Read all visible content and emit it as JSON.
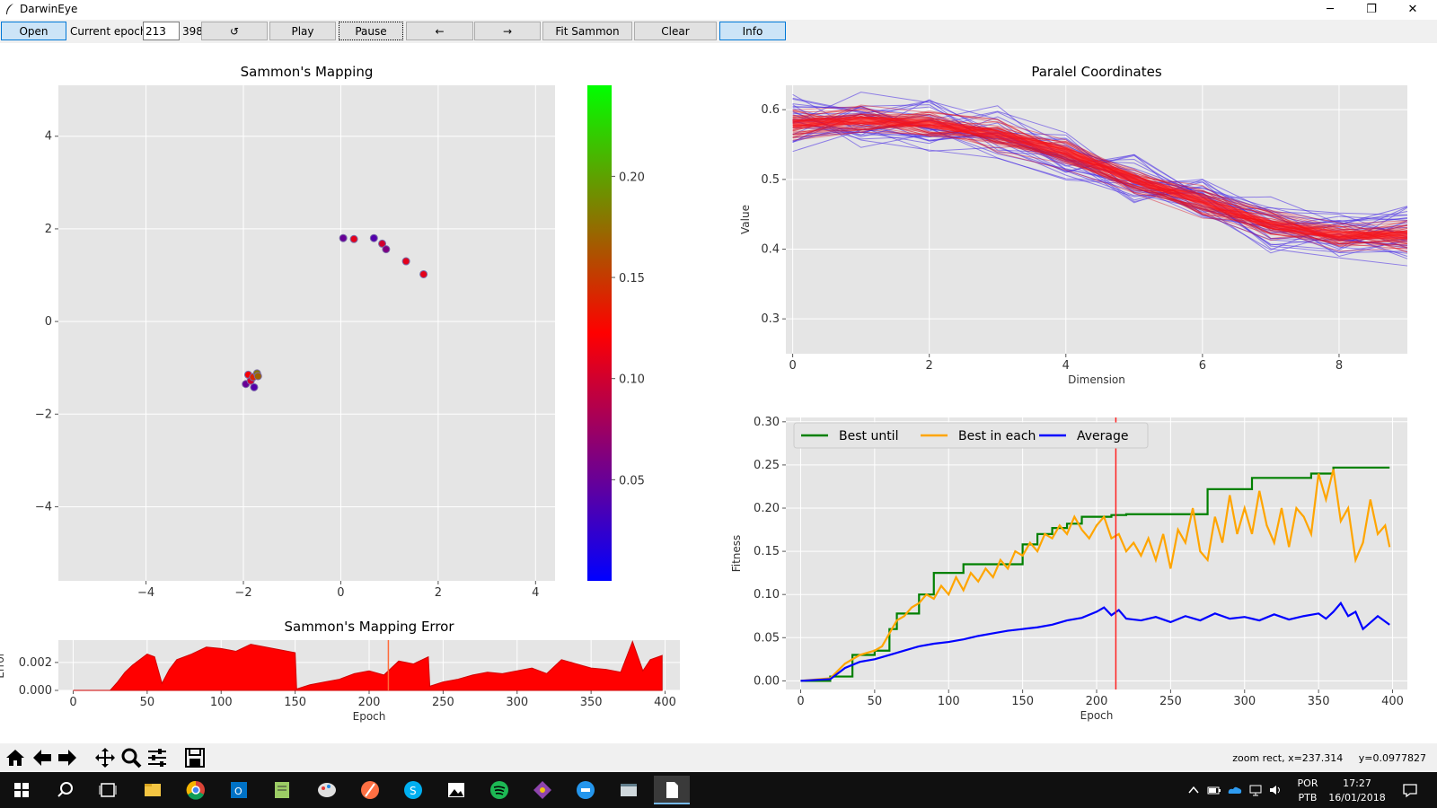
{
  "window": {
    "title": "DarwinEye",
    "minimize_glyph": "─",
    "maximize_glyph": "❐",
    "close_glyph": "✕"
  },
  "toolbar": {
    "open_label": "Open",
    "epoch_label": "Current epoch:",
    "epoch_value": "213",
    "max_epoch": "398",
    "reset_label": "↺",
    "play_label": "Play",
    "pause_label": "Pause",
    "prev_label": "←",
    "next_label": "→",
    "fit_label": "Fit Sammon Data",
    "clear_label": "Clear Highlitghs",
    "info_label": "Info"
  },
  "chart_data": [
    {
      "id": "sammon",
      "type": "scatter",
      "title": "Sammon's Mapping",
      "xlim": [
        -5.8,
        4.4
      ],
      "ylim": [
        -5.6,
        5.1
      ],
      "xticks": [
        -4,
        -2,
        0,
        2,
        4
      ],
      "yticks": [
        -4,
        -2,
        0,
        2,
        4
      ],
      "xtick_labels": [
        "−4",
        "−2",
        "0",
        "2",
        "4"
      ],
      "ytick_labels": [
        "−4",
        "−2",
        "0",
        "2",
        "4"
      ],
      "points": [
        {
          "x": 0.05,
          "y": 1.8,
          "c": 0.05
        },
        {
          "x": 0.27,
          "y": 1.78,
          "c": 0.11
        },
        {
          "x": 0.68,
          "y": 1.8,
          "c": 0.04
        },
        {
          "x": 0.85,
          "y": 1.68,
          "c": 0.1
        },
        {
          "x": 0.93,
          "y": 1.56,
          "c": 0.06
        },
        {
          "x": 1.34,
          "y": 1.3,
          "c": 0.11
        },
        {
          "x": 1.7,
          "y": 1.02,
          "c": 0.11
        },
        {
          "x": -1.95,
          "y": -1.35,
          "c": 0.05
        },
        {
          "x": -1.9,
          "y": -1.15,
          "c": 0.12
        },
        {
          "x": -1.85,
          "y": -1.28,
          "c": 0.1
        },
        {
          "x": -1.8,
          "y": -1.2,
          "c": 0.14
        },
        {
          "x": -1.72,
          "y": -1.12,
          "c": 0.18
        },
        {
          "x": -1.78,
          "y": -1.42,
          "c": 0.04
        },
        {
          "x": -1.7,
          "y": -1.18,
          "c": 0.17
        }
      ]
    },
    {
      "id": "colorbar",
      "type": "heatmap",
      "range": [
        0.0,
        0.245
      ],
      "ticks": [
        0.05,
        0.1,
        0.15,
        0.2
      ],
      "tick_labels": [
        "0.05",
        "0.10",
        "0.15",
        "0.20"
      ],
      "colors": [
        "#0000ff",
        "#ff0000",
        "#00ff00"
      ]
    },
    {
      "id": "sammon_error",
      "type": "area",
      "title": "Sammon's Mapping Error",
      "xlabel": "Epoch",
      "ylabel": "Error",
      "xlim": [
        -10,
        410
      ],
      "ylim": [
        0,
        0.0036
      ],
      "xticks": [
        0,
        50,
        100,
        150,
        200,
        250,
        300,
        350,
        400
      ],
      "yticks": [
        0,
        0.002
      ],
      "ytick_labels": [
        "0.000",
        "0.002"
      ],
      "current_epoch": 213,
      "x": [
        0,
        25,
        30,
        35,
        40,
        45,
        50,
        55,
        60,
        65,
        70,
        80,
        90,
        100,
        110,
        120,
        130,
        140,
        150,
        151,
        160,
        170,
        180,
        190,
        200,
        210,
        220,
        230,
        240,
        241,
        250,
        260,
        270,
        280,
        290,
        300,
        310,
        320,
        330,
        340,
        350,
        360,
        370,
        378,
        385,
        390,
        398
      ],
      "values": [
        0,
        0,
        0.0006,
        0.0013,
        0.0018,
        0.0022,
        0.0026,
        0.0024,
        0.0005,
        0.0015,
        0.0022,
        0.0026,
        0.0031,
        0.003,
        0.0028,
        0.0033,
        0.0031,
        0.0029,
        0.0027,
        0.0001,
        0.0004,
        0.0006,
        0.0008,
        0.0012,
        0.0014,
        0.0011,
        0.0021,
        0.0019,
        0.0024,
        0.0003,
        0.0006,
        0.0008,
        0.0011,
        0.0013,
        0.0012,
        0.0014,
        0.0016,
        0.0012,
        0.0022,
        0.0019,
        0.0016,
        0.0015,
        0.0013,
        0.0035,
        0.0014,
        0.0022,
        0.0025
      ]
    },
    {
      "id": "parallel",
      "type": "line",
      "title": "Paralel Coordinates",
      "xlabel": "Dimension",
      "ylabel": "Value",
      "xlim": [
        -0.1,
        9.0
      ],
      "ylim": [
        0.25,
        0.635
      ],
      "xticks": [
        0,
        2,
        4,
        6,
        8
      ],
      "yticks": [
        0.3,
        0.4,
        0.5,
        0.6
      ],
      "ytick_labels": [
        "0.3",
        "0.4",
        "0.5",
        "0.6"
      ],
      "x": [
        0,
        1,
        2,
        3,
        4,
        5,
        6,
        7,
        8,
        9
      ],
      "base": [
        0.58,
        0.585,
        0.58,
        0.565,
        0.54,
        0.5,
        0.47,
        0.435,
        0.42,
        0.42
      ]
    },
    {
      "id": "fitness",
      "type": "line",
      "xlabel": "Epoch",
      "ylabel": "Fitness",
      "xlim": [
        -10,
        410
      ],
      "ylim": [
        -0.01,
        0.305
      ],
      "xticks": [
        0,
        50,
        100,
        150,
        200,
        250,
        300,
        350,
        400
      ],
      "yticks": [
        0,
        0.05,
        0.1,
        0.15,
        0.2,
        0.25,
        0.3
      ],
      "ytick_labels": [
        "0.00",
        "0.05",
        "0.10",
        "0.15",
        "0.20",
        "0.25",
        "0.30"
      ],
      "current_epoch": 213,
      "series": [
        {
          "name": "Best until",
          "color": "#008000",
          "x": [
            0,
            20,
            35,
            50,
            60,
            65,
            80,
            90,
            100,
            110,
            140,
            150,
            160,
            170,
            180,
            190,
            200,
            210,
            220,
            260,
            275,
            290,
            305,
            330,
            345,
            360,
            398
          ],
          "values": [
            0,
            0.005,
            0.03,
            0.035,
            0.06,
            0.078,
            0.1,
            0.125,
            0.125,
            0.135,
            0.135,
            0.158,
            0.17,
            0.177,
            0.182,
            0.19,
            0.19,
            0.192,
            0.193,
            0.193,
            0.222,
            0.222,
            0.235,
            0.235,
            0.24,
            0.247,
            0.247
          ]
        },
        {
          "name": "Best in each",
          "color": "#ffa500",
          "x": [
            0,
            20,
            30,
            40,
            50,
            55,
            60,
            65,
            70,
            75,
            80,
            85,
            90,
            95,
            100,
            105,
            110,
            115,
            120,
            125,
            130,
            135,
            140,
            145,
            150,
            155,
            160,
            165,
            170,
            175,
            180,
            185,
            190,
            195,
            200,
            205,
            210,
            215,
            220,
            225,
            230,
            235,
            240,
            245,
            250,
            255,
            260,
            265,
            270,
            275,
            280,
            285,
            290,
            295,
            300,
            305,
            310,
            315,
            320,
            325,
            330,
            335,
            340,
            345,
            350,
            355,
            360,
            365,
            370,
            375,
            380,
            385,
            390,
            395,
            398
          ],
          "values": [
            0,
            0.003,
            0.02,
            0.03,
            0.035,
            0.04,
            0.055,
            0.07,
            0.075,
            0.085,
            0.09,
            0.1,
            0.095,
            0.11,
            0.1,
            0.12,
            0.105,
            0.125,
            0.115,
            0.13,
            0.12,
            0.14,
            0.13,
            0.15,
            0.145,
            0.16,
            0.15,
            0.17,
            0.165,
            0.18,
            0.17,
            0.19,
            0.175,
            0.165,
            0.18,
            0.19,
            0.165,
            0.17,
            0.15,
            0.16,
            0.145,
            0.165,
            0.14,
            0.17,
            0.13,
            0.175,
            0.16,
            0.2,
            0.15,
            0.14,
            0.19,
            0.16,
            0.215,
            0.17,
            0.2,
            0.17,
            0.22,
            0.18,
            0.16,
            0.2,
            0.155,
            0.2,
            0.19,
            0.17,
            0.24,
            0.21,
            0.245,
            0.185,
            0.2,
            0.14,
            0.16,
            0.21,
            0.17,
            0.18,
            0.155
          ]
        },
        {
          "name": "Average",
          "color": "#0000ff",
          "x": [
            0,
            20,
            30,
            40,
            50,
            60,
            70,
            80,
            90,
            100,
            110,
            120,
            130,
            140,
            150,
            160,
            170,
            180,
            190,
            200,
            205,
            210,
            215,
            220,
            230,
            240,
            250,
            260,
            270,
            280,
            290,
            300,
            310,
            320,
            330,
            340,
            350,
            355,
            360,
            365,
            370,
            375,
            380,
            390,
            398
          ],
          "values": [
            0,
            0.002,
            0.015,
            0.022,
            0.025,
            0.03,
            0.035,
            0.04,
            0.043,
            0.045,
            0.048,
            0.052,
            0.055,
            0.058,
            0.06,
            0.062,
            0.065,
            0.07,
            0.073,
            0.08,
            0.085,
            0.076,
            0.082,
            0.072,
            0.07,
            0.074,
            0.068,
            0.075,
            0.07,
            0.078,
            0.072,
            0.074,
            0.07,
            0.077,
            0.071,
            0.075,
            0.078,
            0.072,
            0.08,
            0.09,
            0.075,
            0.08,
            0.06,
            0.075,
            0.065
          ]
        }
      ],
      "legend": "top-left"
    }
  ],
  "status": {
    "zoom_text": "zoom rect, x=237.314     y=0.0977827"
  },
  "mpl_tools": [
    {
      "name": "home-icon"
    },
    {
      "name": "back-icon"
    },
    {
      "name": "forward-icon"
    },
    {
      "name": "pan-icon"
    },
    {
      "name": "zoom-icon"
    },
    {
      "name": "configure-icon"
    },
    {
      "name": "save-icon"
    }
  ],
  "taskbar": {
    "lang_1": "POR",
    "lang_2": "PTB",
    "time": "17:27",
    "date": "16/01/2018"
  }
}
